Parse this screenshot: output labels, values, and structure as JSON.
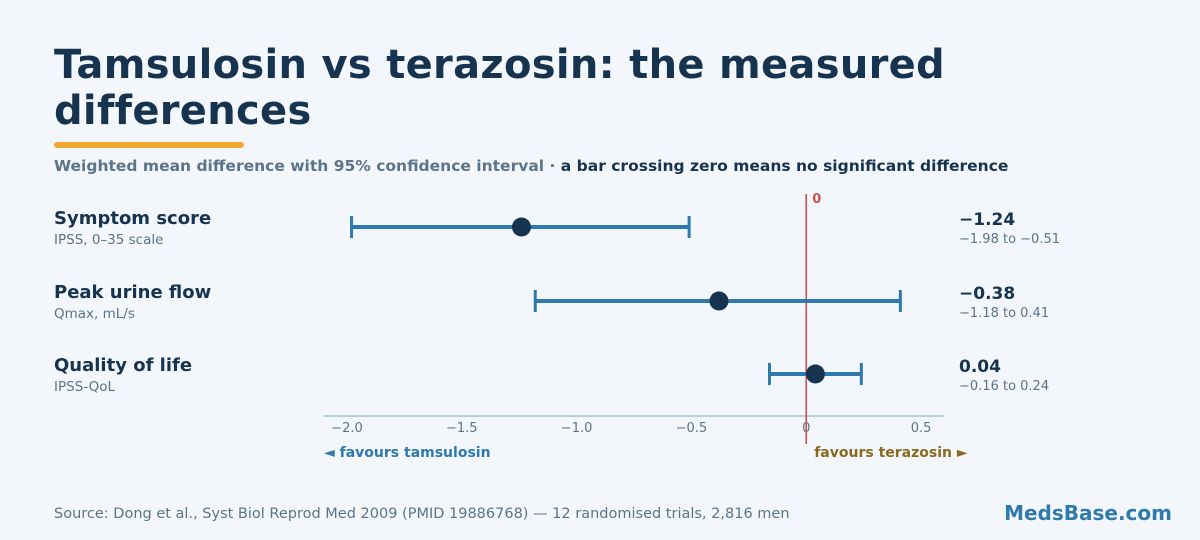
{
  "header": {
    "title": "Tamsulosin vs terazosin: the measured differences",
    "subtitle_part1": "Weighted mean difference with 95% confidence interval · ",
    "subtitle_part2": "a bar crossing zero means no significant difference"
  },
  "chart_data": {
    "type": "forest",
    "xlim": [
      -2.1,
      0.6
    ],
    "ticks": [
      -2.0,
      -1.5,
      -1.0,
      -0.5,
      0,
      0.5
    ],
    "tick_labels": [
      "−2.0",
      "−1.5",
      "−1.0",
      "−0.5",
      "0",
      "0.5"
    ],
    "reference_line": {
      "value": 0,
      "label": "0"
    },
    "favours_left": "◄ favours tamsulosin",
    "favours_right": "favours terazosin ►",
    "rows": [
      {
        "label": "Symptom score",
        "sublabel": "IPSS, 0–35 scale",
        "estimate": -1.24,
        "lower": -1.98,
        "upper": -0.51,
        "estimate_text": "−1.24",
        "ci_text": "−1.98 to −0.51"
      },
      {
        "label": "Peak urine flow",
        "sublabel": "Qmax, mL/s",
        "estimate": -0.38,
        "lower": -1.18,
        "upper": 0.41,
        "estimate_text": "−0.38",
        "ci_text": "−1.18 to 0.41"
      },
      {
        "label": "Quality of life",
        "sublabel": "IPSS-QoL",
        "estimate": 0.04,
        "lower": -0.16,
        "upper": 0.24,
        "estimate_text": "0.04",
        "ci_text": "−0.16 to 0.24"
      }
    ],
    "colors": {
      "ci_bar": "#2e7aad",
      "point": "#16344f",
      "zero_line": "#c9534f",
      "axis": "#9ec0d4"
    }
  },
  "footer": {
    "source": "Source: Dong et al., Syst Biol Reprod Med 2009 (PMID 19886768) — 12 randomised trials, 2,816 men",
    "brand": "MedsBase.com"
  }
}
